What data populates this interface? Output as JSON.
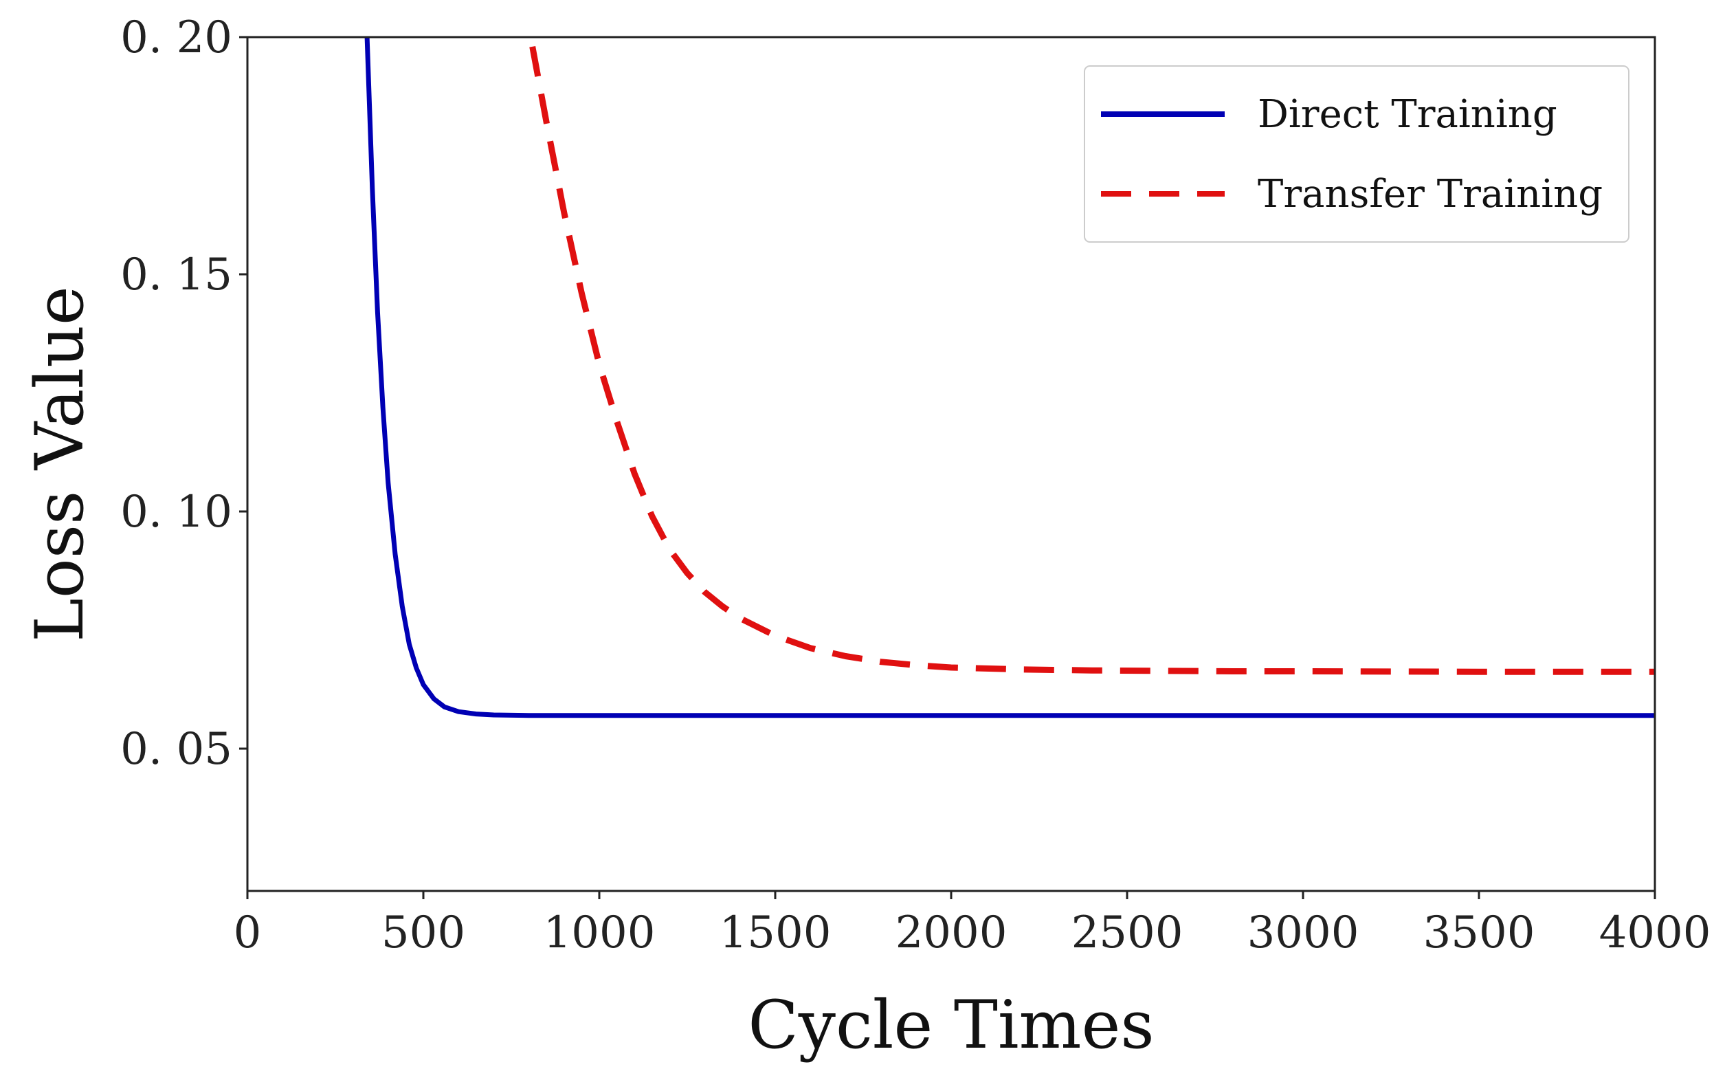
{
  "chart_data": {
    "type": "line",
    "title": "",
    "xlabel": "Cycle Times",
    "ylabel": "Loss Value",
    "xlim": [
      0,
      4000
    ],
    "ylim": [
      0.02,
      0.2
    ],
    "grid": false,
    "legend_position": "top-right",
    "x_ticks": [
      0,
      500,
      1000,
      1500,
      2000,
      2500,
      3000,
      3500,
      4000
    ],
    "x_tick_labels": [
      "0",
      "500",
      "1000",
      "1500",
      "2000",
      "2500",
      "3000",
      "3500",
      "4000"
    ],
    "y_ticks": [
      0.05,
      0.1,
      0.15,
      0.2
    ],
    "y_tick_labels": [
      "0. 05",
      "0. 10",
      "0. 15",
      "0. 20"
    ],
    "series": [
      {
        "name": "Direct Training",
        "color": "#0000b4",
        "style": "solid",
        "x": [
          340,
          355,
          370,
          385,
          400,
          420,
          440,
          460,
          480,
          500,
          530,
          560,
          600,
          650,
          700,
          800,
          1000,
          1500,
          2000,
          2500,
          3000,
          3500,
          4000
        ],
        "y": [
          0.2,
          0.168,
          0.142,
          0.122,
          0.106,
          0.091,
          0.08,
          0.072,
          0.067,
          0.0635,
          0.0605,
          0.0588,
          0.0578,
          0.0573,
          0.0571,
          0.057,
          0.057,
          0.057,
          0.057,
          0.057,
          0.057,
          0.057,
          0.057
        ]
      },
      {
        "name": "Transfer Training",
        "color": "#e01010",
        "style": "dashed",
        "x": [
          810,
          850,
          900,
          950,
          1000,
          1050,
          1100,
          1150,
          1200,
          1250,
          1300,
          1350,
          1400,
          1500,
          1600,
          1700,
          1800,
          1900,
          2000,
          2200,
          2400,
          2600,
          2800,
          3000,
          3500,
          4000
        ],
        "y": [
          0.198,
          0.182,
          0.163,
          0.146,
          0.131,
          0.119,
          0.108,
          0.099,
          0.092,
          0.087,
          0.083,
          0.08,
          0.0775,
          0.0738,
          0.0712,
          0.0695,
          0.0683,
          0.0676,
          0.0671,
          0.0667,
          0.0665,
          0.0664,
          0.0663,
          0.0663,
          0.0662,
          0.0662
        ]
      }
    ]
  }
}
